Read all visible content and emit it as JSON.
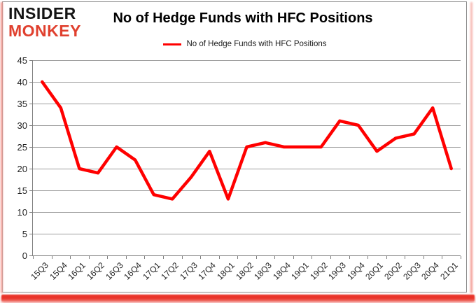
{
  "logo": {
    "line1": "INSIDER",
    "line2": "MONKEY",
    "brand_color": "#e0402e"
  },
  "header": {
    "title": "No of Hedge Funds with HFC Positions"
  },
  "legend": {
    "label": "No of Hedge Funds with HFC Positions"
  },
  "chart_data": {
    "type": "line",
    "title": "No of Hedge Funds with HFC Positions",
    "categories": [
      "15Q3",
      "15Q4",
      "16Q1",
      "16Q2",
      "16Q3",
      "16Q4",
      "17Q1",
      "17Q2",
      "17Q3",
      "17Q4",
      "18Q1",
      "18Q2",
      "18Q3",
      "18Q4",
      "19Q1",
      "19Q2",
      "19Q3",
      "19Q4",
      "20Q1",
      "20Q2",
      "20Q3",
      "20Q4",
      "21Q1"
    ],
    "series": [
      {
        "name": "No of Hedge Funds with HFC Positions",
        "color": "#ff0000",
        "values": [
          40,
          34,
          20,
          19,
          25,
          22,
          14,
          13,
          18,
          24,
          13,
          25,
          26,
          25,
          25,
          25,
          31,
          30,
          24,
          27,
          28,
          34,
          20
        ]
      }
    ],
    "xlabel": "",
    "ylabel": "",
    "ylim": [
      0,
      45
    ],
    "y_ticks": [
      0,
      5,
      10,
      15,
      20,
      25,
      30,
      35,
      40,
      45
    ],
    "grid": true,
    "legend_position": "top",
    "gridline_color": "#9d9d9d",
    "axis_color": "#7f7f7f"
  }
}
